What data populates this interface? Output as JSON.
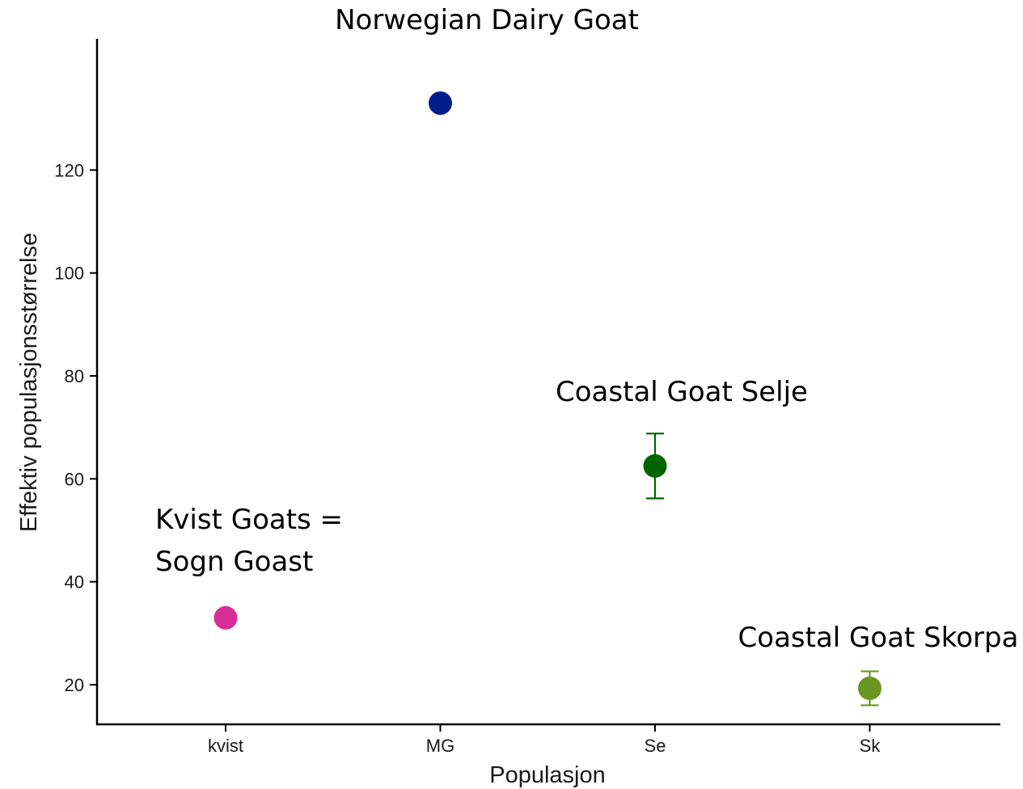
{
  "chart_data": {
    "type": "scatter",
    "title": "",
    "xlabel": "Populasjon",
    "ylabel": "Effektiv populasjonsstørrelse",
    "categories": [
      "kvist",
      "MG",
      "Se",
      "Sk"
    ],
    "y_ticks": [
      20,
      40,
      60,
      80,
      100,
      120
    ],
    "ylim": [
      12.3,
      145.5
    ],
    "grid": false,
    "legend": "none",
    "points": [
      {
        "category": "kvist",
        "y": 33,
        "color": "#D62E96"
      },
      {
        "category": "MG",
        "y": 133,
        "color": "#001E8C"
      },
      {
        "category": "Se",
        "y": 62.5,
        "error_low": 56.2,
        "error_high": 68.8,
        "color": "#006400"
      },
      {
        "category": "Sk",
        "y": 19.3,
        "error_low": 16.0,
        "error_high": 22.6,
        "color": "#6B9624"
      }
    ],
    "annotations": [
      {
        "category": "kvist",
        "lines": [
          "Kvist Goats =",
          "Sogn Goast"
        ]
      },
      {
        "category": "MG",
        "lines": [
          "Norwegian Dairy Goat"
        ]
      },
      {
        "category": "Se",
        "lines": [
          "Coastal Goat Selje"
        ]
      },
      {
        "category": "Sk",
        "lines": [
          "Coastal Goat Skorpa"
        ]
      }
    ]
  }
}
